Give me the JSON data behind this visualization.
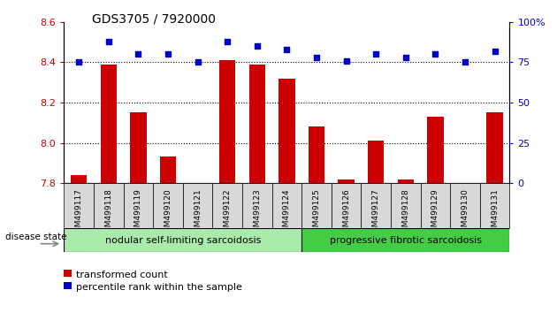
{
  "title": "GDS3705 / 7920000",
  "categories": [
    "GSM499117",
    "GSM499118",
    "GSM499119",
    "GSM499120",
    "GSM499121",
    "GSM499122",
    "GSM499123",
    "GSM499124",
    "GSM499125",
    "GSM499126",
    "GSM499127",
    "GSM499128",
    "GSM499129",
    "GSM499130",
    "GSM499131"
  ],
  "bar_values": [
    7.84,
    8.39,
    8.15,
    7.93,
    7.8,
    8.41,
    8.39,
    8.32,
    8.08,
    7.82,
    8.01,
    7.82,
    8.13,
    7.8,
    8.15
  ],
  "scatter_values": [
    75,
    88,
    80,
    80,
    75,
    88,
    85,
    83,
    78,
    76,
    80,
    78,
    80,
    75,
    82
  ],
  "ylim_left": [
    7.8,
    8.6
  ],
  "ylim_right": [
    0,
    100
  ],
  "yticks_left": [
    7.8,
    8.0,
    8.2,
    8.4,
    8.6
  ],
  "yticks_right": [
    0,
    25,
    50,
    75,
    100
  ],
  "bar_color": "#cc0000",
  "scatter_color": "#0000cc",
  "bar_width": 0.55,
  "group1_label": "nodular self-limiting sarcoidosis",
  "group2_label": "progressive fibrotic sarcoidosis",
  "group1_count": 8,
  "group2_count": 7,
  "disease_state_label": "disease state",
  "legend_bar_label": "transformed count",
  "legend_scatter_label": "percentile rank within the sample",
  "group1_color": "#aaeaaa",
  "group2_color": "#44cc44",
  "tick_label_color_left": "#cc0000",
  "tick_label_color_right": "#0000cc",
  "base_value": 7.8,
  "grid_color": "black",
  "xtick_bg": "#d8d8d8",
  "fig_bg": "#ffffff"
}
